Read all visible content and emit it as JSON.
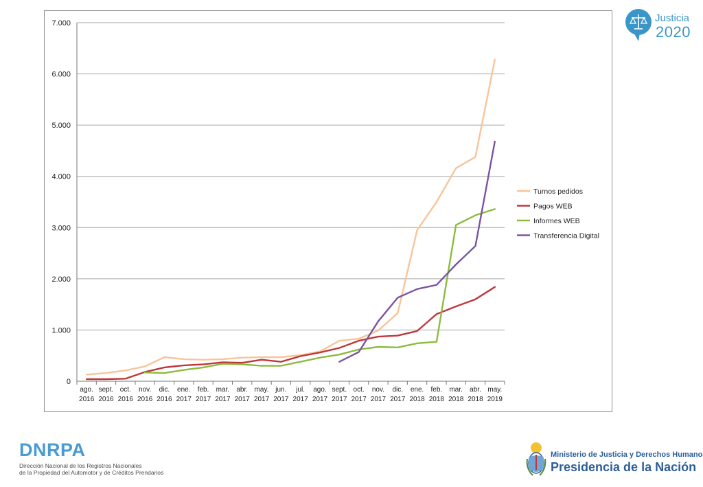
{
  "logo_justicia": {
    "line1": "Justicia",
    "line2": "2020"
  },
  "logo_dnrpa": {
    "title": "DNRPA",
    "subtitle_line1": "Dirección Nacional de los Registros Nacionales",
    "subtitle_line2": "de la Propiedad del Automotor y de Créditos Prendarios"
  },
  "logo_ministerio": {
    "line1": "Ministerio de Justicia y Derechos Humanos",
    "line2": "Presidencia de la Nación"
  },
  "colors": {
    "turnos": "#f8c49a",
    "pagos": "#c0373a",
    "informes": "#8dbb3e",
    "transferencia": "#7b54a1",
    "brand_blue": "#3a96c9",
    "ministerio_blue": "#2d5f96"
  },
  "chart_data": {
    "type": "line",
    "title": "",
    "xlabel": "",
    "ylabel": "",
    "ylim": [
      0,
      7000
    ],
    "yticks": [
      "0",
      "1.000",
      "2.000",
      "3.000",
      "4.000",
      "5.000",
      "6.000",
      "7.000"
    ],
    "grid": "horizontal",
    "legend_position": "right",
    "categories": [
      [
        "ago.",
        "2016"
      ],
      [
        "sept.",
        "2016"
      ],
      [
        "oct.",
        "2016"
      ],
      [
        "nov.",
        "2016"
      ],
      [
        "dic.",
        "2016"
      ],
      [
        "ene.",
        "2017"
      ],
      [
        "feb.",
        "2017"
      ],
      [
        "mar.",
        "2017"
      ],
      [
        "abr.",
        "2017"
      ],
      [
        "may.",
        "2017"
      ],
      [
        "jun.",
        "2017"
      ],
      [
        "jul.",
        "2017"
      ],
      [
        "ago.",
        "2017"
      ],
      [
        "sept.",
        "2017"
      ],
      [
        "oct.",
        "2017"
      ],
      [
        "nov.",
        "2017"
      ],
      [
        "dic.",
        "2017"
      ],
      [
        "ene.",
        "2018"
      ],
      [
        "feb.",
        "2018"
      ],
      [
        "mar.",
        "2018"
      ],
      [
        "abr.",
        "2018"
      ],
      [
        "may.",
        "2019"
      ]
    ],
    "series": [
      {
        "name": "Turnos pedidos",
        "values": [
          130,
          160,
          210,
          290,
          470,
          430,
          420,
          430,
          460,
          470,
          470,
          510,
          580,
          790,
          830,
          990,
          1330,
          2950,
          3500,
          4160,
          4380,
          6280
        ]
      },
      {
        "name": "Pagos WEB",
        "values": [
          40,
          40,
          50,
          180,
          270,
          310,
          330,
          370,
          360,
          420,
          380,
          490,
          560,
          650,
          790,
          870,
          890,
          980,
          1310,
          1460,
          1600,
          1840
        ]
      },
      {
        "name": "Informes WEB",
        "values": [
          null,
          null,
          null,
          170,
          160,
          220,
          270,
          340,
          330,
          300,
          300,
          380,
          460,
          520,
          620,
          670,
          660,
          740,
          770,
          3050,
          3240,
          3360
        ]
      },
      {
        "name": "Transferencia Digital",
        "values": [
          null,
          null,
          null,
          null,
          null,
          null,
          null,
          null,
          null,
          null,
          null,
          null,
          null,
          380,
          570,
          1170,
          1630,
          1800,
          1880,
          2280,
          2640,
          4680
        ]
      }
    ]
  }
}
